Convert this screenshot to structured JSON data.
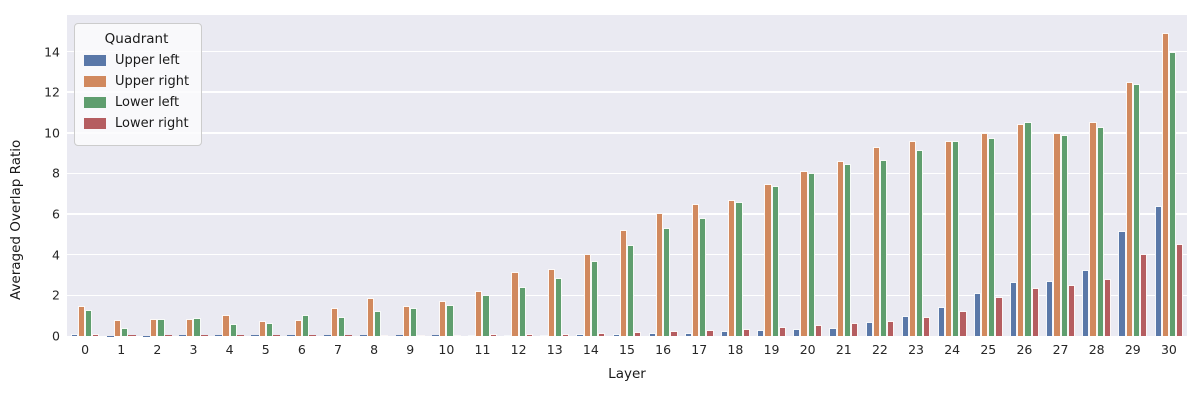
{
  "figure": {
    "background": "#ffffff",
    "plot_background": "#eaeaf2",
    "grid_color": "#ffffff",
    "text_color": "#262626"
  },
  "chart_data": {
    "type": "bar",
    "title": "",
    "xlabel": "Layer",
    "ylabel": "Averaged Overlap Ratio",
    "categories": [
      "0",
      "1",
      "2",
      "3",
      "4",
      "5",
      "6",
      "7",
      "8",
      "9",
      "10",
      "11",
      "12",
      "13",
      "14",
      "15",
      "16",
      "17",
      "18",
      "19",
      "20",
      "21",
      "22",
      "23",
      "24",
      "25",
      "26",
      "27",
      "28",
      "29",
      "30"
    ],
    "yticks": [
      0,
      2,
      4,
      6,
      8,
      10,
      12,
      14
    ],
    "ylim": [
      0,
      15.8
    ],
    "grid": true,
    "legend": {
      "title": "Quadrant",
      "position": "upper left"
    },
    "series": [
      {
        "name": "Upper left",
        "color": "#5a78a8",
        "values": [
          0.08,
          0.02,
          0.02,
          0.03,
          0.03,
          0.03,
          0.03,
          0.04,
          0.04,
          0.05,
          0.05,
          0.06,
          0.06,
          0.07,
          0.08,
          0.12,
          0.13,
          0.16,
          0.26,
          0.3,
          0.35,
          0.4,
          0.7,
          1.0,
          1.45,
          2.1,
          2.65,
          2.7,
          3.25,
          5.15,
          6.4
        ]
      },
      {
        "name": "Upper right",
        "color": "#d1895e",
        "values": [
          1.5,
          0.8,
          0.85,
          0.85,
          1.05,
          0.75,
          0.8,
          1.4,
          1.85,
          1.5,
          1.7,
          2.2,
          3.15,
          3.3,
          4.05,
          5.2,
          6.05,
          6.5,
          6.7,
          7.5,
          8.1,
          8.6,
          9.3,
          9.6,
          9.6,
          10.0,
          10.45,
          10.0,
          10.55,
          12.5,
          14.9
        ]
      },
      {
        "name": "Lower left",
        "color": "#5f9e6e",
        "values": [
          1.3,
          0.4,
          0.85,
          0.9,
          0.6,
          0.65,
          1.05,
          0.95,
          1.25,
          1.4,
          1.55,
          2.0,
          2.4,
          2.85,
          3.7,
          4.5,
          5.3,
          5.8,
          6.6,
          7.4,
          8.0,
          8.45,
          8.65,
          9.15,
          9.6,
          9.75,
          10.55,
          9.9,
          10.3,
          12.4,
          14.0
        ]
      },
      {
        "name": "Lower right",
        "color": "#b55d60",
        "values": [
          0.1,
          0.03,
          0.03,
          0.03,
          0.04,
          0.04,
          0.05,
          0.05,
          0.06,
          0.06,
          0.07,
          0.08,
          0.09,
          0.12,
          0.15,
          0.2,
          0.25,
          0.3,
          0.35,
          0.45,
          0.55,
          0.62,
          0.75,
          0.92,
          1.25,
          1.9,
          2.35,
          2.5,
          2.8,
          4.05,
          4.55
        ]
      }
    ]
  }
}
